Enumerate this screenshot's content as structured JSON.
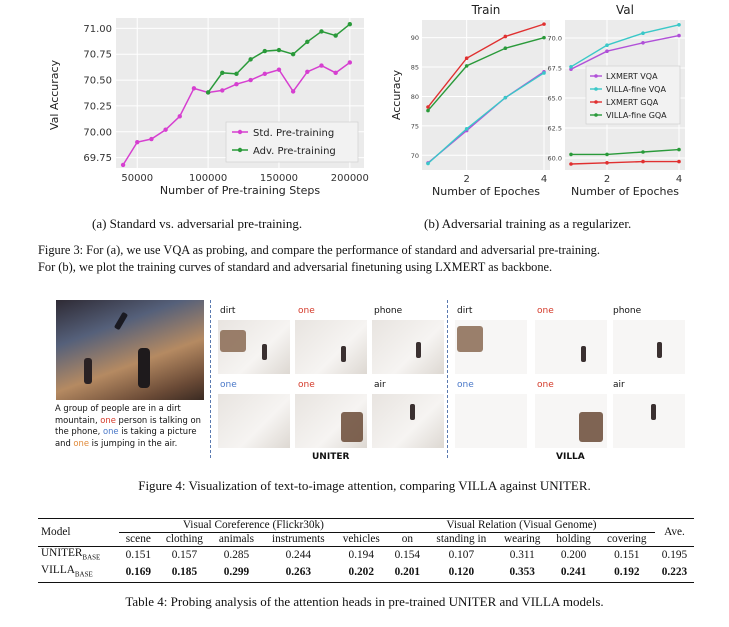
{
  "figure3": {
    "left_plot": {
      "ylabel": "Val Accuracy",
      "xlabel": "Number of Pre-training Steps",
      "yticks": [
        "69.75",
        "70.00",
        "70.25",
        "70.50",
        "70.75",
        "71.00"
      ],
      "xticks": [
        "50000",
        "100000",
        "150000",
        "200000"
      ],
      "legend": [
        "Std. Pre-training",
        "Adv. Pre-training"
      ],
      "caption": "(a) Standard vs. adversarial pre-training."
    },
    "right_plot": {
      "ylabel": "Accuracy",
      "xlabel_train": "Number of Epoches",
      "xlabel_val": "Number of Epoches",
      "title_train": "Train",
      "title_val": "Val",
      "train_yticks": [
        "70",
        "75",
        "80",
        "85",
        "90"
      ],
      "val_yticks": [
        "60.0",
        "62.5",
        "65.0",
        "67.5",
        "70.0"
      ],
      "xticks": [
        "2",
        "4"
      ],
      "legend": [
        "LXMERT VQA",
        "VILLA-fine VQA",
        "LXMERT GQA",
        "VILLA-fine GQA"
      ],
      "caption": "(b) Adversarial training as a regularizer."
    },
    "caption_line1": "Figure 3: For (a), we use VQA as probing, and compare the performance of standard and adversarial pre-training.",
    "caption_line2": "For (b), we plot the training curves of standard and adversarial finetuning using LXMERT as backbone."
  },
  "chart_data": [
    {
      "type": "line",
      "ylabel": "Val Accuracy",
      "xlabel": "Number of Pre-training Steps",
      "ylim": [
        69.65,
        71.1
      ],
      "xlim": [
        35000,
        210000
      ],
      "legend_position": "lower-right",
      "grid": true,
      "series": [
        {
          "name": "Std. Pre-training",
          "color": "#d63fd0",
          "x": [
            40000,
            50000,
            60000,
            70000,
            80000,
            90000,
            100000,
            110000,
            120000,
            130000,
            140000,
            150000,
            160000,
            170000,
            180000,
            190000,
            200000
          ],
          "y": [
            69.68,
            69.9,
            69.93,
            70.02,
            70.15,
            70.42,
            70.38,
            70.4,
            70.46,
            70.5,
            70.56,
            70.6,
            70.39,
            70.58,
            70.64,
            70.57,
            70.67
          ]
        },
        {
          "name": "Adv. Pre-training",
          "color": "#2a9a3a",
          "x": [
            100000,
            110000,
            120000,
            130000,
            140000,
            150000,
            160000,
            170000,
            180000,
            190000,
            200000
          ],
          "y": [
            70.38,
            70.57,
            70.56,
            70.7,
            70.78,
            70.79,
            70.75,
            70.87,
            70.97,
            70.93,
            71.04
          ]
        }
      ]
    },
    {
      "type": "line",
      "title": "Train",
      "ylabel": "Accuracy",
      "xlabel": "Number of Epoches",
      "ylim": [
        67.5,
        93
      ],
      "x": [
        1,
        2,
        3,
        4
      ],
      "grid": true,
      "series": [
        {
          "name": "LXMERT VQA",
          "color": "#b050d8",
          "y": [
            68.7,
            74.2,
            79.8,
            84.2
          ]
        },
        {
          "name": "VILLA-fine VQA",
          "color": "#3ac8c8",
          "y": [
            68.6,
            74.5,
            79.8,
            84.0
          ]
        },
        {
          "name": "LXMERT GQA",
          "color": "#e03030",
          "y": [
            78.2,
            86.5,
            90.2,
            92.3
          ]
        },
        {
          "name": "VILLA-fine GQA",
          "color": "#2a9a3a",
          "y": [
            77.6,
            85.2,
            88.2,
            90.0
          ]
        }
      ]
    },
    {
      "type": "line",
      "title": "Val",
      "xlabel": "Number of Epoches",
      "ylim": [
        59,
        71.5
      ],
      "x": [
        1,
        2,
        3,
        4
      ],
      "legend_position": "center-right",
      "grid": true,
      "series": [
        {
          "name": "LXMERT VQA",
          "color": "#b050d8",
          "y": [
            67.4,
            68.9,
            69.6,
            70.2
          ]
        },
        {
          "name": "VILLA-fine VQA",
          "color": "#3ac8c8",
          "y": [
            67.6,
            69.4,
            70.4,
            71.1
          ]
        },
        {
          "name": "LXMERT GQA",
          "color": "#e03030",
          "y": [
            59.5,
            59.6,
            59.7,
            59.7
          ]
        },
        {
          "name": "VILLA-fine GQA",
          "color": "#2a9a3a",
          "y": [
            60.3,
            60.3,
            60.5,
            60.7
          ]
        }
      ]
    }
  ],
  "figure4": {
    "description": "A group of people are in a dirt mountain, one person is talking on the phone, one is taking a picture and one is jumping in the air.",
    "desc_parts": [
      "A group of people are in a dirt",
      "mountain, ",
      "one",
      " person is talking on",
      "the phone, ",
      "one",
      " is taking a picture",
      "and ",
      "one",
      " is jumping in the air."
    ],
    "uniter_words": [
      "dirt",
      "one",
      "phone",
      "one",
      "one",
      "air"
    ],
    "villa_words": [
      "dirt",
      "one",
      "phone",
      "one",
      "one",
      "air"
    ],
    "uniter_label": "UNITER",
    "villa_label": "VILLA",
    "caption": "Figure 4: Visualization of text-to-image attention, comparing VILLA against UNITER."
  },
  "table4": {
    "col_model": "Model",
    "group1": "Visual Coreference (Flickr30k)",
    "group2": "Visual Relation (Visual Genome)",
    "col_ave": "Ave.",
    "subcols": [
      "scene",
      "clothing",
      "animals",
      "instruments",
      "vehicles",
      "on",
      "standing in",
      "wearing",
      "holding",
      "covering"
    ],
    "rows": [
      {
        "model": "UNITER",
        "sub": "BASE",
        "values": [
          "0.151",
          "0.157",
          "0.285",
          "0.244",
          "0.194",
          "0.154",
          "0.107",
          "0.311",
          "0.200",
          "0.151"
        ],
        "ave": "0.195"
      },
      {
        "model": "VILLA",
        "sub": "BASE",
        "values": [
          "0.169",
          "0.185",
          "0.299",
          "0.263",
          "0.202",
          "0.201",
          "0.120",
          "0.353",
          "0.241",
          "0.192"
        ],
        "ave": "0.223"
      }
    ],
    "caption": "Table 4: Probing analysis of the attention heads in pre-trained UNITER and VILLA models."
  }
}
